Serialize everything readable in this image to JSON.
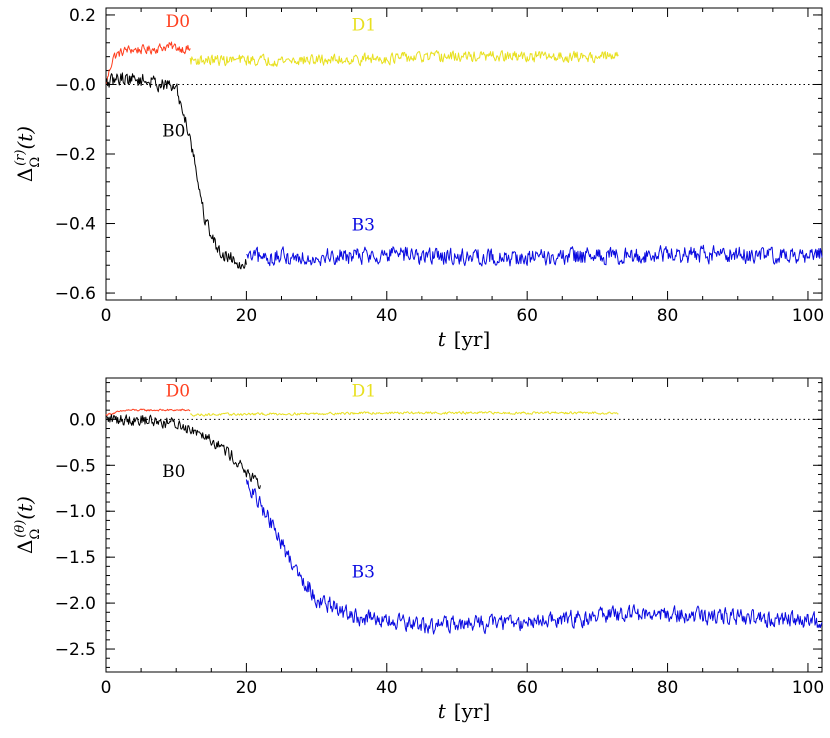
{
  "chart_data": [
    {
      "type": "line",
      "panel": "top",
      "xlabel": "t  [yr]",
      "ylabel": "Δ_Ω^(r)(t)",
      "xlim": [
        0,
        102
      ],
      "ylim": [
        -0.62,
        0.22
      ],
      "xticks": [
        0,
        20,
        40,
        60,
        80,
        100
      ],
      "xtick_labels": [
        "0",
        "20",
        "40",
        "60",
        "80",
        "100"
      ],
      "yticks": [
        0.2,
        0.0,
        -0.2,
        -0.4,
        -0.6
      ],
      "ytick_labels": [
        "0.2",
        "−0.0",
        "−0.2",
        "−0.4",
        "−0.6"
      ],
      "zero_line": true,
      "series": [
        {
          "name": "D0",
          "color": "#ff3f1f",
          "x_range": [
            0,
            12
          ],
          "label_pos": [
            8.5,
            0.165
          ],
          "keypoints": [
            [
              0,
              0.0
            ],
            [
              1,
              0.08
            ],
            [
              3,
              0.1
            ],
            [
              6,
              0.1
            ],
            [
              9,
              0.11
            ],
            [
              12,
              0.1
            ]
          ],
          "noise": 0.012
        },
        {
          "name": "D1",
          "color": "#e8e020",
          "x_range": [
            12,
            73
          ],
          "label_pos": [
            35,
            0.155
          ],
          "keypoints": [
            [
              12,
              0.07
            ],
            [
              30,
              0.07
            ],
            [
              50,
              0.08
            ],
            [
              73,
              0.08
            ]
          ],
          "noise": 0.014
        },
        {
          "name": "B0",
          "color": "#000000",
          "x_range": [
            0,
            20
          ],
          "label_pos": [
            8,
            -0.15
          ],
          "keypoints": [
            [
              0,
              -0.0
            ],
            [
              2,
              0.02
            ],
            [
              6,
              0.01
            ],
            [
              10,
              -0.01
            ],
            [
              12,
              -0.15
            ],
            [
              14,
              -0.38
            ],
            [
              16,
              -0.48
            ],
            [
              20,
              -0.52
            ]
          ],
          "noise": 0.018
        },
        {
          "name": "B3",
          "color": "#0a0ae0",
          "x_range": [
            20,
            102
          ],
          "label_pos": [
            35,
            -0.42
          ],
          "keypoints": [
            [
              20,
              -0.5
            ],
            [
              40,
              -0.49
            ],
            [
              60,
              -0.5
            ],
            [
              80,
              -0.49
            ],
            [
              102,
              -0.49
            ]
          ],
          "noise": 0.022
        }
      ]
    },
    {
      "type": "line",
      "panel": "bottom",
      "xlabel": "t  [yr]",
      "ylabel": "Δ_Ω^(θ)(t)",
      "xlim": [
        0,
        102
      ],
      "ylim": [
        -2.75,
        0.45
      ],
      "xticks": [
        0,
        20,
        40,
        60,
        80,
        100
      ],
      "xtick_labels": [
        "0",
        "20",
        "40",
        "60",
        "80",
        "100"
      ],
      "yticks": [
        0.0,
        -0.5,
        -1.0,
        -1.5,
        -2.0,
        -2.5
      ],
      "ytick_labels": [
        "0.0",
        "−0.5",
        "−1.0",
        "−1.5",
        "−2.0",
        "−2.5"
      ],
      "zero_line": true,
      "series": [
        {
          "name": "D0",
          "color": "#ff3f1f",
          "x_range": [
            0,
            12
          ],
          "label_pos": [
            8.5,
            0.25
          ],
          "keypoints": [
            [
              0,
              0.05
            ],
            [
              3,
              0.1
            ],
            [
              7,
              0.1
            ],
            [
              12,
              0.1
            ]
          ],
          "noise": 0.01
        },
        {
          "name": "D1",
          "color": "#e8e020",
          "x_range": [
            12,
            73
          ],
          "label_pos": [
            35,
            0.25
          ],
          "keypoints": [
            [
              12,
              0.05
            ],
            [
              40,
              0.07
            ],
            [
              73,
              0.07
            ]
          ],
          "noise": 0.012
        },
        {
          "name": "B0",
          "color": "#000000",
          "x_range": [
            0,
            22
          ],
          "label_pos": [
            8,
            -0.63
          ],
          "keypoints": [
            [
              0,
              0.0
            ],
            [
              5,
              0.0
            ],
            [
              10,
              -0.05
            ],
            [
              14,
              -0.15
            ],
            [
              18,
              -0.4
            ],
            [
              22,
              -0.75
            ]
          ],
          "noise": 0.06
        },
        {
          "name": "B3",
          "color": "#0a0ae0",
          "x_range": [
            20,
            102
          ],
          "label_pos": [
            35,
            -1.72
          ],
          "keypoints": [
            [
              20,
              -0.7
            ],
            [
              23,
              -1.05
            ],
            [
              26,
              -1.5
            ],
            [
              30,
              -1.95
            ],
            [
              35,
              -2.15
            ],
            [
              45,
              -2.25
            ],
            [
              60,
              -2.2
            ],
            [
              75,
              -2.12
            ],
            [
              90,
              -2.15
            ],
            [
              102,
              -2.2
            ]
          ],
          "noise": 0.08
        }
      ]
    }
  ]
}
